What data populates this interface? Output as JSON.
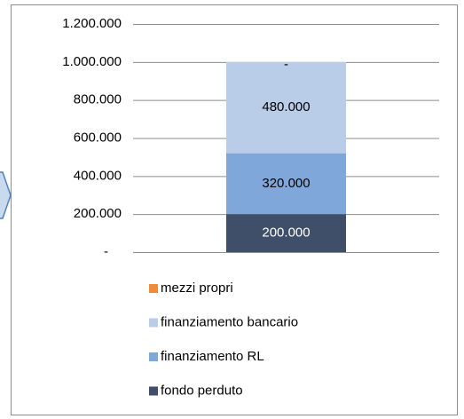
{
  "chart_data": {
    "type": "stacked_bar",
    "categories": [
      null
    ],
    "series": [
      {
        "name": "fondo perduto",
        "color": "#3f4f69",
        "values": [
          200000
        ],
        "value_labels": [
          "200.000"
        ]
      },
      {
        "name": "finanziamento RL",
        "color": "#7fa7d9",
        "values": [
          320000
        ],
        "value_labels": [
          "320.000"
        ]
      },
      {
        "name": "finanziamento bancario",
        "color": "#b9cde9",
        "values": [
          480000
        ],
        "value_labels": [
          "480.000"
        ]
      },
      {
        "name": "mezzi propri",
        "color": "#f08a3c",
        "values": [
          0
        ],
        "value_labels": [
          "-"
        ]
      }
    ],
    "ylim": [
      0,
      1200000
    ],
    "yticks": [
      {
        "value": 0,
        "label": "-"
      },
      {
        "value": 200000,
        "label": "200.000"
      },
      {
        "value": 400000,
        "label": "400.000"
      },
      {
        "value": 600000,
        "label": "600.000"
      },
      {
        "value": 800000,
        "label": "800.000"
      },
      {
        "value": 1000000,
        "label": "1.000.000"
      },
      {
        "value": 1200000,
        "label": "1.200.000"
      }
    ],
    "grid": true,
    "legend": "bottom"
  }
}
